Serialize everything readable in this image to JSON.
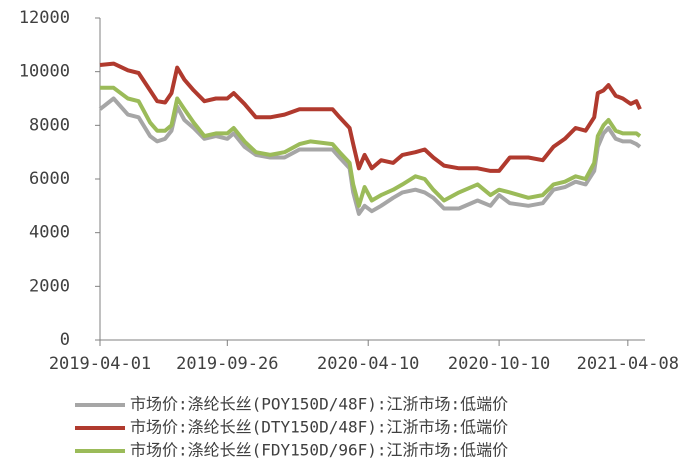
{
  "chart_data": {
    "type": "line",
    "x": [
      "2019-04-01",
      "2019-04-20",
      "2019-05-10",
      "2019-05-25",
      "2019-06-10",
      "2019-06-20",
      "2019-07-01",
      "2019-07-10",
      "2019-07-18",
      "2019-07-28",
      "2019-08-10",
      "2019-08-25",
      "2019-09-10",
      "2019-09-26",
      "2019-10-05",
      "2019-10-20",
      "2019-11-05",
      "2019-11-25",
      "2019-12-15",
      "2020-01-05",
      "2020-01-20",
      "2020-02-20",
      "2020-03-01",
      "2020-03-15",
      "2020-03-20",
      "2020-03-28",
      "2020-04-05",
      "2020-04-15",
      "2020-04-28",
      "2020-05-15",
      "2020-05-28",
      "2020-06-15",
      "2020-06-28",
      "2020-07-10",
      "2020-07-25",
      "2020-08-15",
      "2020-09-10",
      "2020-09-28",
      "2020-10-10",
      "2020-10-25",
      "2020-11-20",
      "2020-12-10",
      "2020-12-25",
      "2021-01-10",
      "2021-01-25",
      "2021-02-08",
      "2021-02-20",
      "2021-02-25",
      "2021-03-05",
      "2021-03-12",
      "2021-03-22",
      "2021-04-01",
      "2021-04-12",
      "2021-04-20",
      "2021-04-25"
    ],
    "series": [
      {
        "name": "市场价:涤纶长丝(POY150D/48F):江浙市场:低端价",
        "color": "#a6a6a6",
        "values": [
          8600,
          9000,
          8400,
          8300,
          7600,
          7400,
          7500,
          7800,
          8700,
          8200,
          7900,
          7500,
          7600,
          7500,
          7700,
          7200,
          6900,
          6800,
          6800,
          7100,
          7100,
          7100,
          6800,
          6400,
          5500,
          4700,
          5000,
          4800,
          5000,
          5300,
          5500,
          5600,
          5500,
          5300,
          4900,
          4900,
          5200,
          5000,
          5400,
          5100,
          5000,
          5100,
          5600,
          5700,
          5900,
          5800,
          6300,
          7200,
          7700,
          7900,
          7500,
          7400,
          7400,
          7300,
          7200
        ]
      },
      {
        "name": "市场价:涤纶长丝(DTY150D/48F):江浙市场:低端价",
        "color": "#b03a2e",
        "values": [
          10250,
          10300,
          10050,
          9950,
          9300,
          8900,
          8850,
          9200,
          10150,
          9700,
          9300,
          8900,
          9000,
          9000,
          9200,
          8800,
          8300,
          8300,
          8400,
          8600,
          8600,
          8600,
          8300,
          7900,
          7300,
          6400,
          6900,
          6400,
          6700,
          6600,
          6900,
          7000,
          7100,
          6800,
          6500,
          6400,
          6400,
          6300,
          6300,
          6800,
          6800,
          6700,
          7200,
          7500,
          7900,
          7800,
          8300,
          9200,
          9300,
          9500,
          9100,
          9000,
          8800,
          8900,
          8600
        ]
      },
      {
        "name": "市场价:涤纶长丝(FDY150D/96F):江浙市场:低端价",
        "color": "#9bbb59",
        "values": [
          9400,
          9400,
          9000,
          8900,
          8100,
          7800,
          7800,
          8000,
          9000,
          8600,
          8100,
          7600,
          7700,
          7700,
          7900,
          7400,
          7000,
          6900,
          7000,
          7300,
          7400,
          7300,
          7000,
          6600,
          5800,
          5000,
          5700,
          5200,
          5400,
          5600,
          5800,
          6100,
          6000,
          5600,
          5200,
          5500,
          5800,
          5400,
          5600,
          5500,
          5300,
          5400,
          5800,
          5900,
          6100,
          6000,
          6600,
          7600,
          8000,
          8200,
          7800,
          7700,
          7700,
          7700,
          7600
        ]
      }
    ],
    "xlim": [
      "2019-04-01",
      "2021-04-25"
    ],
    "xticks": [
      "2019-04-01",
      "2019-09-26",
      "2020-04-10",
      "2020-10-10",
      "2021-04-08"
    ],
    "ylim": [
      0,
      12000
    ],
    "yticks": [
      0,
      2000,
      4000,
      6000,
      8000,
      10000,
      12000
    ],
    "legend": "bottom"
  }
}
